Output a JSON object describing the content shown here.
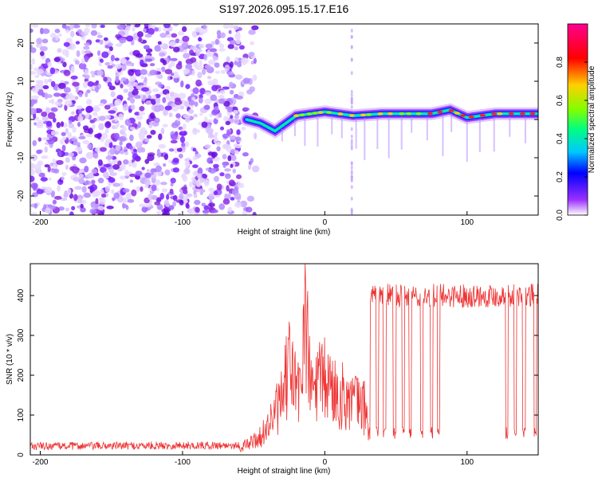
{
  "chart_data": [
    {
      "type": "heatmap",
      "title": "S197.2026.095.15.17.E16",
      "xlabel": "Height of straight line (km)",
      "ylabel": "Frequency (Hz)",
      "xlim": [
        -207,
        150
      ],
      "ylim": [
        -25,
        25
      ],
      "xticks": [
        "-200",
        "-100",
        "0",
        "100"
      ],
      "yticks": [
        "20",
        "10",
        "0",
        "-10",
        "-20"
      ],
      "colorbar": {
        "label": "Normalized spectral amplitude",
        "range": [
          0,
          1
        ],
        "ticks": [
          "0.0",
          "0.2",
          "0.4",
          "0.6",
          "0.8"
        ],
        "colors": [
          "#ffffff",
          "#9b30ff",
          "#0000ff",
          "#00c8ff",
          "#00ff80",
          "#80ff00",
          "#ffd000",
          "#ff0000",
          "#ff0090"
        ]
      },
      "ridge": [
        {
          "x": -55,
          "y": 0
        },
        {
          "x": -45,
          "y": -1
        },
        {
          "x": -35,
          "y": -3
        },
        {
          "x": -20,
          "y": 1
        },
        {
          "x": 0,
          "y": 2
        },
        {
          "x": 20,
          "y": 1
        },
        {
          "x": 40,
          "y": 1.5
        },
        {
          "x": 60,
          "y": 1.5
        },
        {
          "x": 75,
          "y": 1.5
        },
        {
          "x": 88,
          "y": 2.5
        },
        {
          "x": 100,
          "y": 0.5
        },
        {
          "x": 120,
          "y": 1.5
        },
        {
          "x": 150,
          "y": 1.5
        }
      ]
    },
    {
      "type": "line",
      "xlabel": "Height of straight line (km)",
      "ylabel": "SNR (10 * v/v)",
      "xlim": [
        -207,
        150
      ],
      "ylim": [
        0,
        480
      ],
      "xticks": [
        "-200",
        "-100",
        "0",
        "100"
      ],
      "yticks": [
        "0",
        "100",
        "200",
        "300",
        "400"
      ],
      "color": "#ee3333",
      "envelope": [
        {
          "x": -207,
          "y": 20
        },
        {
          "x": -60,
          "y": 22
        },
        {
          "x": -45,
          "y": 60
        },
        {
          "x": -30,
          "y": 180
        },
        {
          "x": -25,
          "y": 300
        },
        {
          "x": -18,
          "y": 200
        },
        {
          "x": -14,
          "y": 470
        },
        {
          "x": -10,
          "y": 220
        },
        {
          "x": 0,
          "y": 250
        },
        {
          "x": 10,
          "y": 200
        },
        {
          "x": 20,
          "y": 180
        },
        {
          "x": 28,
          "y": 160
        },
        {
          "x": 32,
          "y": 60
        },
        {
          "x": 34,
          "y": 420
        },
        {
          "x": 150,
          "y": 420
        }
      ]
    }
  ]
}
